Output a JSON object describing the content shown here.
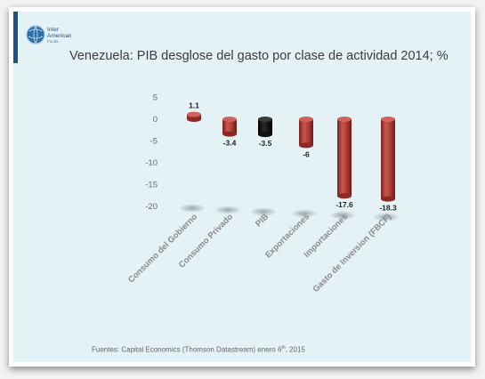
{
  "logo": {
    "line1": "Inter",
    "line2": "American",
    "line3": "Funds"
  },
  "title": "Venezuela: PIB desglose del gasto por clase de actividad 2014; %",
  "footer": {
    "text_before": "Fuentes: Capital Economics (Thomson Datastream) enero 6",
    "superscript": "th",
    "text_after": ", 2015"
  },
  "colors": {
    "bar": "#b9403a",
    "bar_highlight": "#000000",
    "background": "#e4f1f5",
    "accent": "#1f4f86"
  },
  "chart_data": {
    "type": "bar",
    "title": "Venezuela: PIB desglose del gasto por clase de actividad 2014; %",
    "categories": [
      "Consumo del Gobierno",
      "Consumo Privado",
      "PIB",
      "Exportaciones",
      "Importaciones",
      "Gasto de Inversion (FBCF)"
    ],
    "values": [
      1.1,
      -3.4,
      -3.5,
      -6,
      -17.6,
      -18.3
    ],
    "data_labels": [
      "1.1",
      "-3.4",
      "-3.5",
      "-6",
      "-17.6",
      "-18.3"
    ],
    "y_ticks": [
      "5",
      "0",
      "-5",
      "-10",
      "-15",
      "-20"
    ],
    "y_tick_values": [
      5,
      0,
      -5,
      -10,
      -15,
      -20
    ],
    "ylim": [
      -20,
      5
    ],
    "highlight_index": 2,
    "style": "3d-cylinder",
    "grid": false
  }
}
